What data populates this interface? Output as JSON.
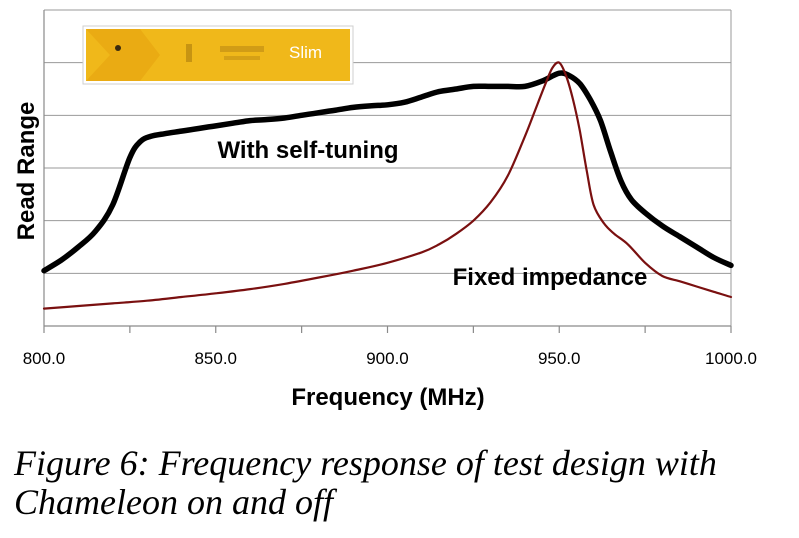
{
  "chart_data": {
    "type": "line",
    "xlabel": "Frequency (MHz)",
    "ylabel": "Read Range",
    "xlim": [
      800,
      1000
    ],
    "ylim": [
      0,
      6
    ],
    "x_ticks": [
      "800.0",
      "850.0",
      "900.0",
      "950.0",
      "1000.0"
    ],
    "y_gridlines": 6,
    "grid": "horizontal",
    "series": [
      {
        "name": "With self-tuning",
        "color": "#000000",
        "x": [
          800,
          805,
          810,
          815,
          820,
          825,
          828,
          831,
          835,
          840,
          845,
          850,
          855,
          860,
          865,
          870,
          875,
          880,
          885,
          890,
          895,
          900,
          905,
          910,
          915,
          920,
          925,
          930,
          935,
          940,
          945,
          950,
          953,
          956,
          959,
          962,
          965,
          968,
          971,
          975,
          980,
          985,
          990,
          995,
          1000
        ],
        "y": [
          1.05,
          1.25,
          1.5,
          1.8,
          2.3,
          3.2,
          3.5,
          3.6,
          3.65,
          3.7,
          3.75,
          3.8,
          3.85,
          3.9,
          3.92,
          3.95,
          4.0,
          4.05,
          4.1,
          4.15,
          4.18,
          4.2,
          4.25,
          4.35,
          4.45,
          4.5,
          4.55,
          4.55,
          4.55,
          4.55,
          4.65,
          4.8,
          4.75,
          4.6,
          4.3,
          3.9,
          3.3,
          2.75,
          2.4,
          2.15,
          1.9,
          1.7,
          1.5,
          1.3,
          1.15
        ]
      },
      {
        "name": "Fixed impedance",
        "color": "#7a1010",
        "x": [
          800,
          810,
          820,
          830,
          840,
          850,
          860,
          870,
          880,
          890,
          900,
          910,
          915,
          920,
          925,
          930,
          935,
          940,
          943,
          946,
          948,
          950,
          952,
          954,
          956,
          958,
          960,
          963,
          966,
          970,
          975,
          980,
          985,
          990,
          995,
          1000
        ],
        "y": [
          0.33,
          0.38,
          0.43,
          0.48,
          0.55,
          0.62,
          0.7,
          0.8,
          0.92,
          1.05,
          1.2,
          1.4,
          1.55,
          1.75,
          2.0,
          2.35,
          2.85,
          3.6,
          4.1,
          4.6,
          4.9,
          5.0,
          4.75,
          4.3,
          3.7,
          2.95,
          2.3,
          1.95,
          1.75,
          1.55,
          1.2,
          0.95,
          0.85,
          0.75,
          0.65,
          0.55
        ]
      }
    ],
    "annotations": [
      {
        "text": "With self-tuning",
        "series": 0
      },
      {
        "text": "Fixed impedance",
        "series": 1
      }
    ],
    "inset_image": {
      "description_label": "Slim",
      "background_color": "#f0b81a"
    }
  },
  "caption": {
    "line1": "Figure 6: Frequency response of test design with",
    "line2": "Chameleon on and off"
  }
}
